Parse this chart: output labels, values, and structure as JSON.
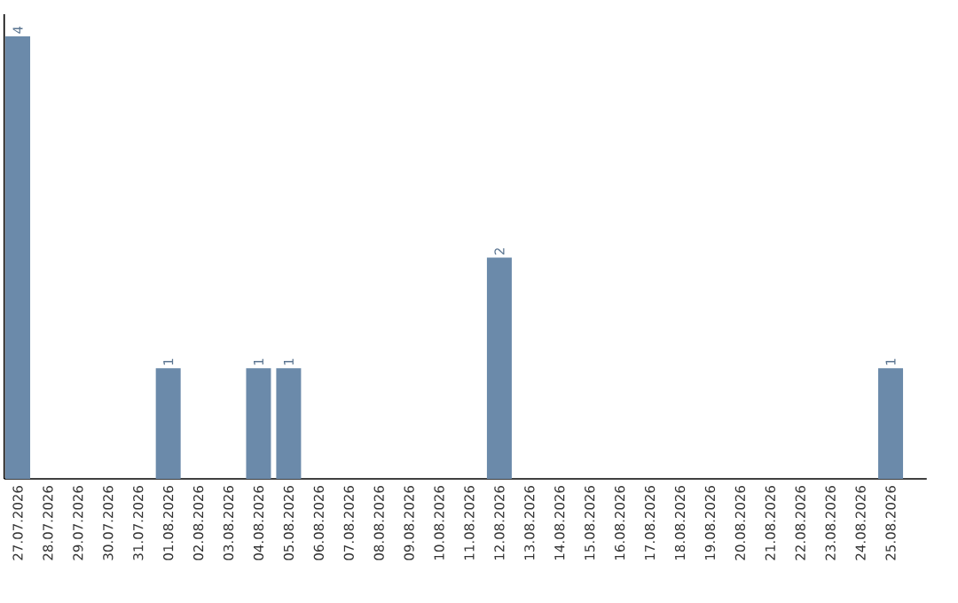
{
  "chart_data": {
    "type": "bar",
    "categories": [
      "27.07.2026",
      "28.07.2026",
      "29.07.2026",
      "30.07.2026",
      "31.07.2026",
      "01.08.2026",
      "02.08.2026",
      "03.08.2026",
      "04.08.2026",
      "05.08.2026",
      "06.08.2026",
      "07.08.2026",
      "08.08.2026",
      "09.08.2026",
      "10.08.2026",
      "11.08.2026",
      "12.08.2026",
      "13.08.2026",
      "14.08.2026",
      "15.08.2026",
      "16.08.2026",
      "17.08.2026",
      "18.08.2026",
      "19.08.2026",
      "20.08.2026",
      "21.08.2026",
      "22.08.2026",
      "23.08.2026",
      "24.08.2026",
      "25.08.2026"
    ],
    "values": [
      4,
      0,
      0,
      0,
      0,
      1,
      0,
      0,
      1,
      1,
      0,
      0,
      0,
      0,
      0,
      0,
      2,
      0,
      0,
      0,
      0,
      0,
      0,
      0,
      0,
      0,
      0,
      0,
      0,
      1
    ],
    "value_labels": [
      "4",
      null,
      null,
      null,
      null,
      "1",
      null,
      null,
      "1",
      "1",
      null,
      null,
      null,
      null,
      null,
      null,
      "2",
      null,
      null,
      null,
      null,
      null,
      null,
      null,
      null,
      null,
      null,
      null,
      null,
      "1"
    ],
    "color": "#6b8aaa",
    "ylim": [
      0,
      4.2
    ],
    "tick_labels": "x",
    "grid": false
  }
}
